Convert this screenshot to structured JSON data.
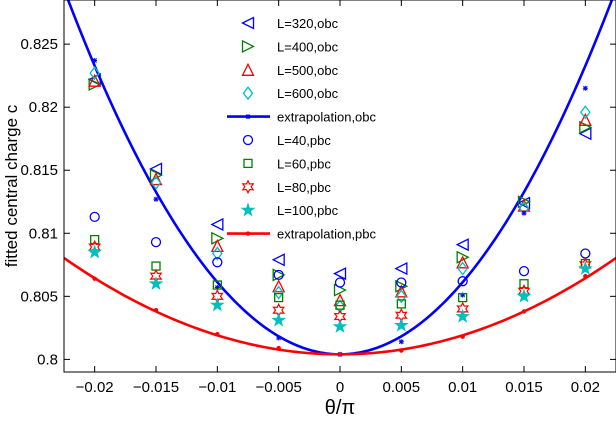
{
  "chart_data": {
    "type": "scatter",
    "title": "",
    "xlabel": "θ/π",
    "ylabel": "fitted central charge c",
    "xlim": [
      -0.0225,
      0.0225
    ],
    "ylim": [
      0.799,
      0.8285
    ],
    "x_ticks": [
      -0.02,
      -0.015,
      -0.01,
      -0.005,
      0,
      0.005,
      0.01,
      0.015,
      0.02
    ],
    "x_tick_labels": [
      "−0.02",
      "−0.015",
      "−0.01",
      "−0.005",
      "0",
      "0.005",
      "0.01",
      "0.015",
      "0.02"
    ],
    "y_ticks": [
      0.8,
      0.805,
      0.81,
      0.815,
      0.82,
      0.825
    ],
    "y_tick_labels": [
      "0.8",
      "0.805",
      "0.81",
      "0.815",
      "0.82",
      "0.825"
    ],
    "grid": false,
    "legend_position": "top-right",
    "x": [
      -0.02,
      -0.015,
      -0.01,
      -0.005,
      0,
      0.005,
      0.01,
      0.015,
      0.02
    ],
    "series": [
      {
        "name": "L=320,obc",
        "marker": "triangle-left",
        "color": "#0000ff",
        "values": [
          0.8222,
          0.8151,
          0.8107,
          0.8079,
          0.8068,
          0.8072,
          0.8091,
          0.8124,
          0.8179
        ]
      },
      {
        "name": "L=400,obc",
        "marker": "triangle-right",
        "color": "#008000",
        "values": [
          0.8218,
          0.8146,
          0.8096,
          0.8067,
          0.8055,
          0.8058,
          0.8081,
          0.8125,
          0.8184
        ]
      },
      {
        "name": "L=500,obc",
        "marker": "triangle-up",
        "color": "#ff0000",
        "values": [
          0.8221,
          0.8143,
          0.809,
          0.8058,
          0.8047,
          0.8054,
          0.8077,
          0.8122,
          0.819
        ]
      },
      {
        "name": "L=600,obc",
        "marker": "diamond",
        "color": "#00bfbf",
        "values": [
          0.8227,
          0.814,
          0.8084,
          0.8053,
          0.8042,
          0.805,
          0.8072,
          0.812,
          0.8196
        ]
      },
      {
        "name": "extrapolation,obc",
        "marker": "star-line",
        "color": "#0000ff",
        "line": true,
        "values": [
          0.8237,
          0.8127,
          0.8057,
          0.8017,
          0.8004,
          0.8014,
          0.8051,
          0.8116,
          0.8215
        ]
      },
      {
        "name": "L=40,pbc",
        "marker": "circle",
        "color": "#0000ff",
        "values": [
          0.8113,
          0.8093,
          0.8077,
          0.8067,
          0.8061,
          0.8061,
          0.8062,
          0.807,
          0.8084
        ]
      },
      {
        "name": "L=60,pbc",
        "marker": "square",
        "color": "#008000",
        "values": [
          0.8095,
          0.8074,
          0.8059,
          0.8049,
          0.8043,
          0.8044,
          0.8049,
          0.806,
          0.8076
        ]
      },
      {
        "name": "L=80,pbc",
        "marker": "hexagram",
        "color": "#ff0000",
        "values": [
          0.8089,
          0.8066,
          0.805,
          0.8039,
          0.8034,
          0.8035,
          0.804,
          0.8054,
          0.8075
        ]
      },
      {
        "name": "L=100,pbc",
        "marker": "pentagram",
        "color": "#00bfbf",
        "values": [
          0.8085,
          0.806,
          0.8043,
          0.8031,
          0.8026,
          0.8027,
          0.8034,
          0.805,
          0.8072
        ]
      },
      {
        "name": "extrapolation,pbc",
        "marker": "dot-line",
        "color": "#ff0000",
        "line": true,
        "values": [
          0.8064,
          0.8039,
          0.802,
          0.8009,
          0.8004,
          0.8007,
          0.8018,
          0.8038,
          0.8066
        ]
      }
    ],
    "fit_curves": [
      {
        "series": "extrapolation,obc",
        "color": "#0000ff",
        "a": 0.8004,
        "b": 57.2,
        "x_range": [
          -0.0225,
          0.0225
        ]
      },
      {
        "series": "extrapolation,pbc",
        "color": "#ff0000",
        "a": 0.8004,
        "b": 15.1,
        "x_range": [
          -0.0225,
          0.0225
        ]
      }
    ]
  }
}
